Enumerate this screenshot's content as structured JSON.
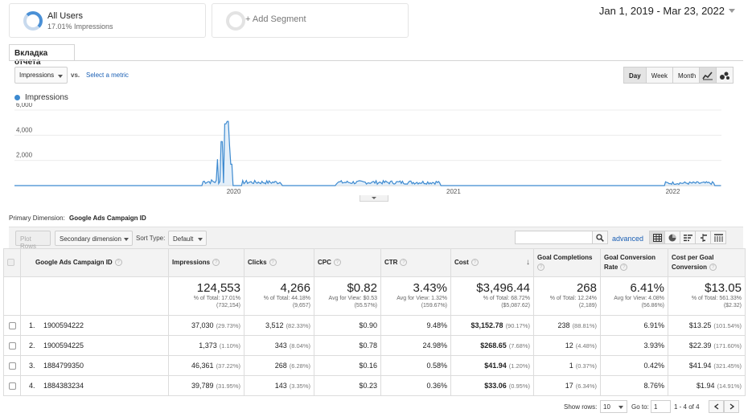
{
  "segments": {
    "all_users_title": "All Users",
    "all_users_sub": "17.01% Impressions",
    "add_segment": "+ Add Segment"
  },
  "date_range": "Jan 1, 2019 - Mar 23, 2022",
  "report_tab": "Вкладка отчета",
  "metric_controls": {
    "metric": "Impressions",
    "vs": "vs.",
    "select_metric": "Select a metric",
    "granularity": [
      "Day",
      "Week",
      "Month"
    ],
    "active_granularity": "Day"
  },
  "chart_data": {
    "type": "line",
    "series": [
      {
        "name": "Impressions",
        "color": "#3d8ad0"
      }
    ],
    "y_ticks": [
      "6,000",
      "4,000",
      "2,000"
    ],
    "y_tick_values": [
      6000,
      4000,
      2000
    ],
    "ylim": [
      0,
      6000
    ],
    "x_ticks": [
      "2020",
      "2021",
      "2022"
    ],
    "xlim": [
      "2019-01-01",
      "2022-03-23"
    ],
    "x_tick_dates": [
      "2020-01-01",
      "2021-01-01",
      "2022-01-01"
    ],
    "active_periods": [
      {
        "start": "2019-11-10",
        "end": "2019-12-25",
        "level": 400
      },
      {
        "start": "2020-01-15",
        "end": "2020-03-20",
        "level": 330
      },
      {
        "start": "2020-06-20",
        "end": "2020-12-10",
        "level": 320
      },
      {
        "start": "2021-12-20",
        "end": "2022-03-10",
        "level": 250
      }
    ],
    "spikes": [
      {
        "date": "2019-12-05",
        "value": 2100
      },
      {
        "date": "2019-12-12",
        "value": 3500
      },
      {
        "date": "2019-12-18",
        "value": 4900
      },
      {
        "date": "2019-12-22",
        "value": 5100
      },
      {
        "date": "2019-12-24",
        "value": 3200
      },
      {
        "date": "2019-12-28",
        "value": 1700
      }
    ]
  },
  "primary_dimension": {
    "label": "Primary Dimension:",
    "value": "Google Ads Campaign ID"
  },
  "table_controls": {
    "plot_rows": "Plot Rows",
    "secondary_dimension": "Secondary dimension",
    "sort_type_label": "Sort Type:",
    "sort_type": "Default",
    "advanced": "advanced"
  },
  "table": {
    "headers": {
      "dimension": "Google Ads Campaign ID",
      "impressions": "Impressions",
      "clicks": "Clicks",
      "cpc": "CPC",
      "ctr": "CTR",
      "cost": "Cost",
      "goal_completions": "Goal Completions",
      "goal_conversion_rate": "Goal Conversion Rate",
      "cost_per_goal_conversion": "Cost per Goal Conversion"
    },
    "totals": {
      "impressions": {
        "big": "124,553",
        "sub1": "% of Total: 17.01%",
        "sub2": "(732,154)"
      },
      "clicks": {
        "big": "4,266",
        "sub1": "% of Total: 44.18%",
        "sub2": "(9,657)"
      },
      "cpc": {
        "big": "$0.82",
        "sub1": "Avg for View: $0.53",
        "sub2": "(55.57%)"
      },
      "ctr": {
        "big": "3.43%",
        "sub1": "Avg for View: 1.32%",
        "sub2": "(159.67%)"
      },
      "cost": {
        "big": "$3,496.44",
        "sub1": "% of Total: 68.72%",
        "sub2": "($5,087.62)"
      },
      "goal_completions": {
        "big": "268",
        "sub1": "% of Total: 12.24%",
        "sub2": "(2,189)"
      },
      "goal_conversion_rate": {
        "big": "6.41%",
        "sub1": "Avg for View: 4.08%",
        "sub2": "(56.86%)"
      },
      "cost_per_goal_conversion": {
        "big": "$13.05",
        "sub1": "% of Total: 561.33%",
        "sub2": "($2.32)"
      }
    },
    "rows": [
      {
        "num": "1.",
        "id": "1900594222",
        "impressions": "37,030",
        "impressions_pct": "(29.73%)",
        "clicks": "3,512",
        "clicks_pct": "(82.33%)",
        "cpc": "$0.90",
        "ctr": "9.48%",
        "cost": "$3,152.78",
        "cost_pct": "(90.17%)",
        "goals": "238",
        "goals_pct": "(88.81%)",
        "conv_rate": "6.91%",
        "cost_per": "$13.25",
        "cost_per_pct": "(101.54%)"
      },
      {
        "num": "2.",
        "id": "1900594225",
        "impressions": "1,373",
        "impressions_pct": "(1.10%)",
        "clicks": "343",
        "clicks_pct": "(8.04%)",
        "cpc": "$0.78",
        "ctr": "24.98%",
        "cost": "$268.65",
        "cost_pct": "(7.68%)",
        "goals": "12",
        "goals_pct": "(4.48%)",
        "conv_rate": "3.93%",
        "cost_per": "$22.39",
        "cost_per_pct": "(171.60%)"
      },
      {
        "num": "3.",
        "id": "1884799350",
        "impressions": "46,361",
        "impressions_pct": "(37.22%)",
        "clicks": "268",
        "clicks_pct": "(6.28%)",
        "cpc": "$0.16",
        "ctr": "0.58%",
        "cost": "$41.94",
        "cost_pct": "(1.20%)",
        "goals": "1",
        "goals_pct": "(0.37%)",
        "conv_rate": "0.42%",
        "cost_per": "$41.94",
        "cost_per_pct": "(321.45%)"
      },
      {
        "num": "4.",
        "id": "1884383234",
        "impressions": "39,789",
        "impressions_pct": "(31.95%)",
        "clicks": "143",
        "clicks_pct": "(3.35%)",
        "cpc": "$0.23",
        "ctr": "0.36%",
        "cost": "$33.06",
        "cost_pct": "(0.95%)",
        "goals": "17",
        "goals_pct": "(6.34%)",
        "conv_rate": "8.76%",
        "cost_per": "$1.94",
        "cost_per_pct": "(14.91%)"
      }
    ]
  },
  "pager": {
    "show_rows_label": "Show rows:",
    "show_rows_value": "10",
    "goto_label": "Go to:",
    "goto_value": "1",
    "range": "1 - 4 of 4"
  }
}
